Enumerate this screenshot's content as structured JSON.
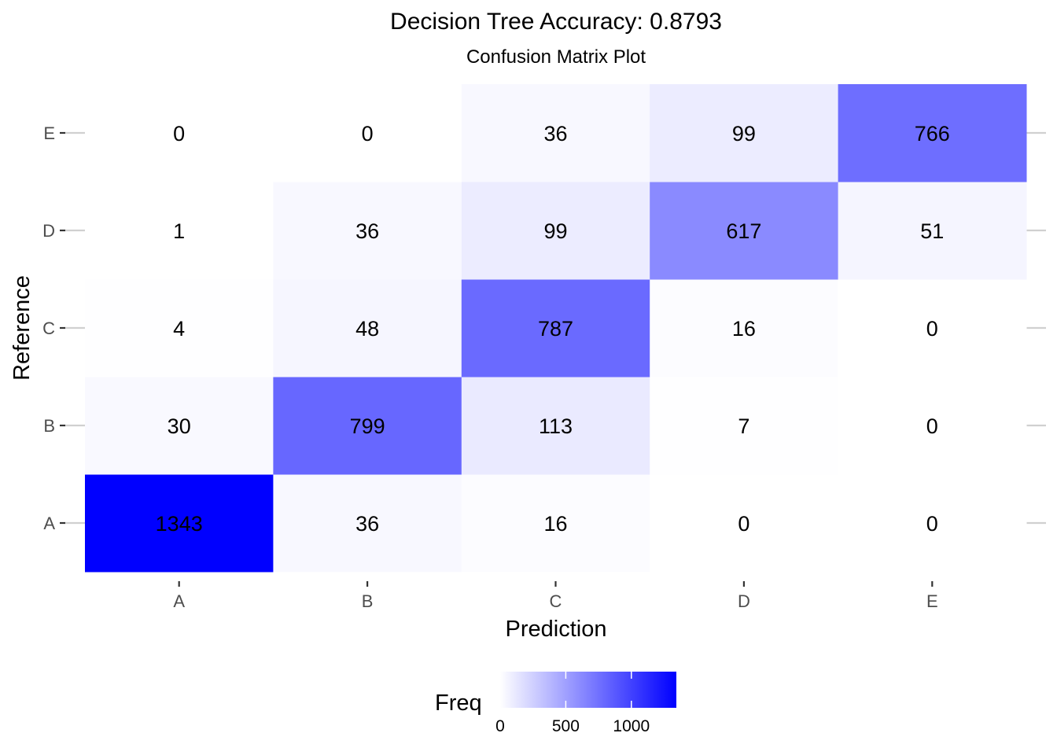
{
  "chart_data": {
    "type": "heatmap",
    "title": "Decision Tree Accuracy: 0.8793",
    "subtitle": "Confusion Matrix Plot",
    "xlabel": "Prediction",
    "ylabel": "Reference",
    "x_categories": [
      "A",
      "B",
      "C",
      "D",
      "E"
    ],
    "y_categories": [
      "A",
      "B",
      "C",
      "D",
      "E"
    ],
    "cells": [
      {
        "prediction": "A",
        "reference": "A",
        "freq": 1343
      },
      {
        "prediction": "B",
        "reference": "A",
        "freq": 36
      },
      {
        "prediction": "C",
        "reference": "A",
        "freq": 16
      },
      {
        "prediction": "D",
        "reference": "A",
        "freq": 0
      },
      {
        "prediction": "E",
        "reference": "A",
        "freq": 0
      },
      {
        "prediction": "A",
        "reference": "B",
        "freq": 30
      },
      {
        "prediction": "B",
        "reference": "B",
        "freq": 799
      },
      {
        "prediction": "C",
        "reference": "B",
        "freq": 113
      },
      {
        "prediction": "D",
        "reference": "B",
        "freq": 7
      },
      {
        "prediction": "E",
        "reference": "B",
        "freq": 0
      },
      {
        "prediction": "A",
        "reference": "C",
        "freq": 4
      },
      {
        "prediction": "B",
        "reference": "C",
        "freq": 48
      },
      {
        "prediction": "C",
        "reference": "C",
        "freq": 787
      },
      {
        "prediction": "D",
        "reference": "C",
        "freq": 16
      },
      {
        "prediction": "E",
        "reference": "C",
        "freq": 0
      },
      {
        "prediction": "A",
        "reference": "D",
        "freq": 1
      },
      {
        "prediction": "B",
        "reference": "D",
        "freq": 36
      },
      {
        "prediction": "C",
        "reference": "D",
        "freq": 99
      },
      {
        "prediction": "D",
        "reference": "D",
        "freq": 617
      },
      {
        "prediction": "E",
        "reference": "D",
        "freq": 51
      },
      {
        "prediction": "A",
        "reference": "E",
        "freq": 0
      },
      {
        "prediction": "B",
        "reference": "E",
        "freq": 0
      },
      {
        "prediction": "C",
        "reference": "E",
        "freq": 36
      },
      {
        "prediction": "D",
        "reference": "E",
        "freq": 99
      },
      {
        "prediction": "E",
        "reference": "E",
        "freq": 766
      }
    ],
    "legend": {
      "title": "Freq",
      "placement": "bottom",
      "ticks": [
        0,
        500,
        1000
      ],
      "range": [
        0,
        1343
      ]
    },
    "colors": {
      "low": "#ffffff",
      "high": "#0000ff",
      "tick_mark": "#333333",
      "grid_stub": "#d0d0d0"
    }
  }
}
